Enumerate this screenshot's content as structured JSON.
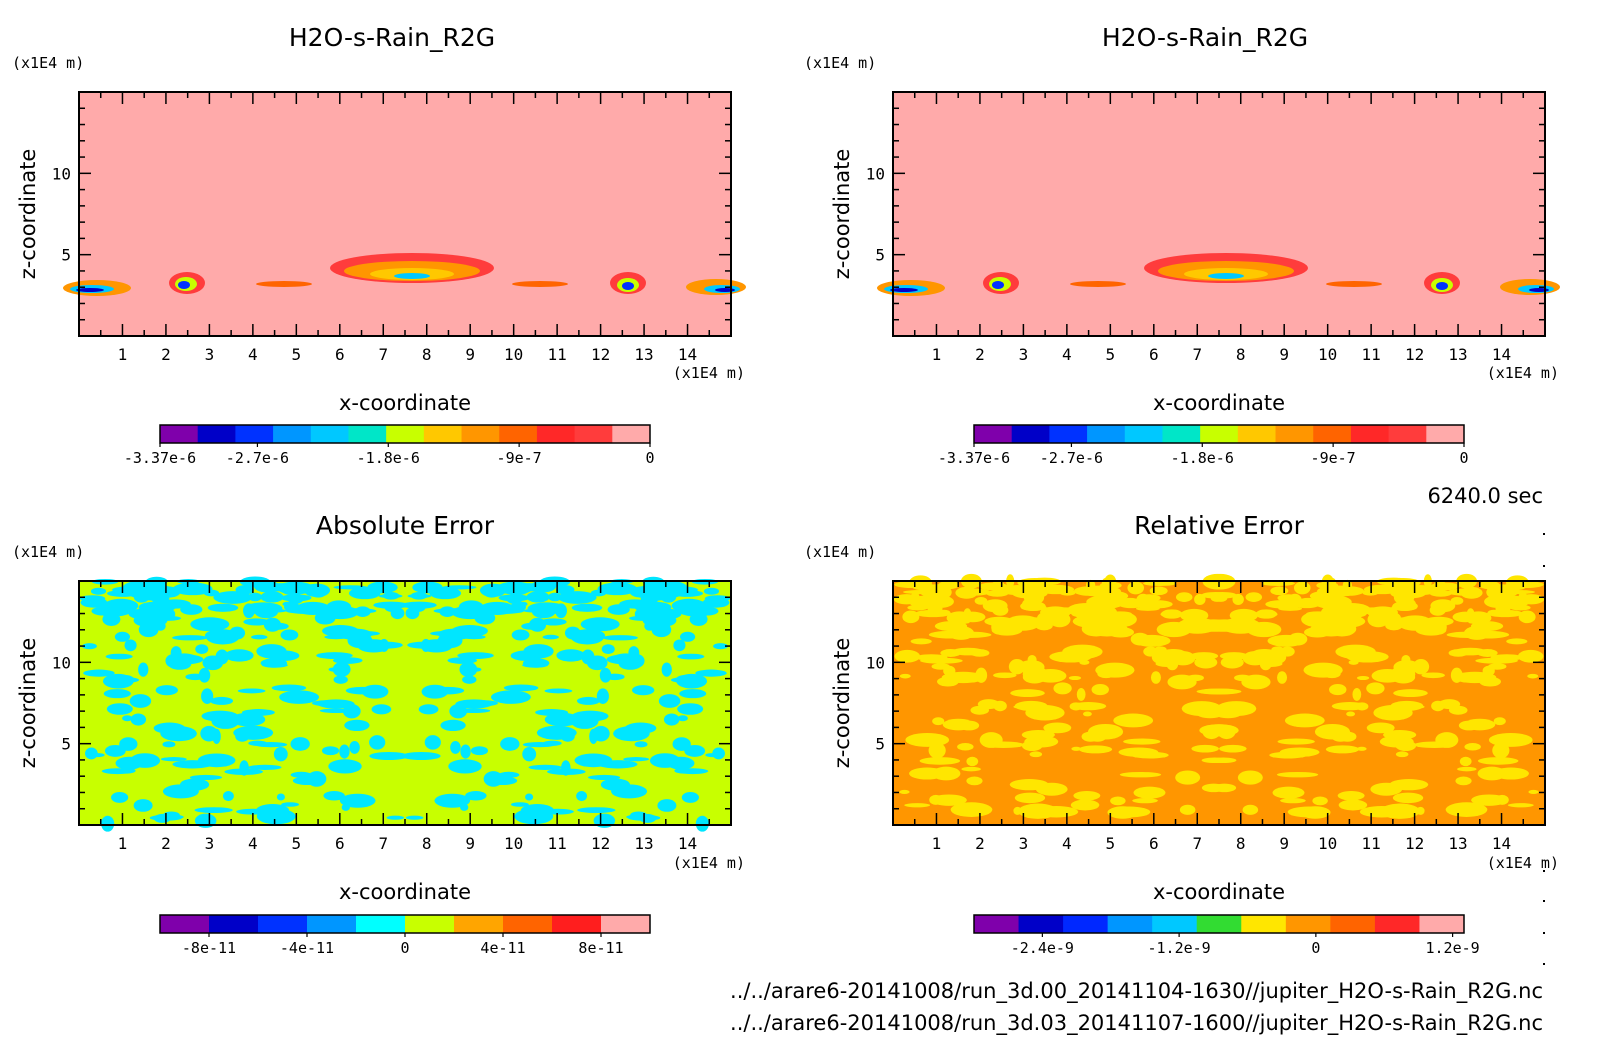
{
  "chart_data": [
    {
      "type": "heatmap",
      "title": "H2O-s-Rain_R2G",
      "xlabel": "x-coordinate",
      "ylabel": "z-coordinate",
      "x_unit": "(x1E4 m)",
      "y_unit": "(x1E4 m)",
      "xlim": [
        0,
        15
      ],
      "ylim": [
        0,
        15
      ],
      "x_ticks": [
        1,
        2,
        3,
        4,
        5,
        6,
        7,
        8,
        9,
        10,
        11,
        12,
        13,
        14
      ],
      "y_ticks": [
        5,
        10
      ],
      "background_value": 0,
      "colorbar": {
        "colors": [
          "#7f00ab",
          "#0000c8",
          "#0032ff",
          "#0096ff",
          "#00c8ff",
          "#00e6c8",
          "#c8ff00",
          "#ffc800",
          "#ff9600",
          "#ff6400",
          "#ff2828",
          "#ff3c3c",
          "#ffaaaa"
        ],
        "labels": [
          "-3.37e-6",
          "-2.7e-6",
          "-1.8e-6",
          "-9e-7",
          "0"
        ],
        "label_values": [
          -3.37e-06,
          -2.7e-06,
          -1.8e-06,
          -9e-07,
          0
        ],
        "range": [
          -3.37e-06,
          0
        ]
      },
      "features": [
        {
          "x": 0.5,
          "z": 3.0,
          "value": -3.37e-06
        },
        {
          "x": 2.5,
          "z": 3.3,
          "value": -3e-06
        },
        {
          "x": 4.7,
          "z": 3.2,
          "value": -5e-07
        },
        {
          "x": 7.6,
          "z": 4.0,
          "value": -1.8e-06
        },
        {
          "x": 10.4,
          "z": 3.2,
          "value": -5e-07
        },
        {
          "x": 12.6,
          "z": 3.3,
          "value": -3e-06
        },
        {
          "x": 14.6,
          "z": 3.0,
          "value": -3.37e-06
        }
      ]
    },
    {
      "type": "heatmap",
      "title": "H2O-s-Rain_R2G",
      "xlabel": "x-coordinate",
      "ylabel": "z-coordinate",
      "x_unit": "(x1E4 m)",
      "y_unit": "(x1E4 m)",
      "xlim": [
        0,
        15
      ],
      "ylim": [
        0,
        15
      ],
      "x_ticks": [
        1,
        2,
        3,
        4,
        5,
        6,
        7,
        8,
        9,
        10,
        11,
        12,
        13,
        14
      ],
      "y_ticks": [
        5,
        10
      ],
      "background_value": 0,
      "colorbar": {
        "colors": [
          "#7f00ab",
          "#0000c8",
          "#0032ff",
          "#0096ff",
          "#00c8ff",
          "#00e6c8",
          "#c8ff00",
          "#ffc800",
          "#ff9600",
          "#ff6400",
          "#ff2828",
          "#ff3c3c",
          "#ffaaaa"
        ],
        "labels": [
          "-3.37e-6",
          "-2.7e-6",
          "-1.8e-6",
          "-9e-7",
          "0"
        ],
        "label_values": [
          -3.37e-06,
          -2.7e-06,
          -1.8e-06,
          -9e-07,
          0
        ],
        "range": [
          -3.37e-06,
          0
        ]
      },
      "features": [
        {
          "x": 0.5,
          "z": 3.0,
          "value": -3.37e-06
        },
        {
          "x": 2.5,
          "z": 3.3,
          "value": -3e-06
        },
        {
          "x": 4.7,
          "z": 3.2,
          "value": -5e-07
        },
        {
          "x": 7.6,
          "z": 4.0,
          "value": -1.8e-06
        },
        {
          "x": 10.4,
          "z": 3.2,
          "value": -5e-07
        },
        {
          "x": 12.6,
          "z": 3.3,
          "value": -3e-06
        },
        {
          "x": 14.6,
          "z": 3.0,
          "value": -3.37e-06
        }
      ]
    },
    {
      "type": "heatmap",
      "title": "Absolute Error",
      "xlabel": "x-coordinate",
      "ylabel": "z-coordinate",
      "x_unit": "(x1E4 m)",
      "y_unit": "(x1E4 m)",
      "xlim": [
        0,
        15
      ],
      "ylim": [
        0,
        15
      ],
      "x_ticks": [
        1,
        2,
        3,
        4,
        5,
        6,
        7,
        8,
        9,
        10,
        11,
        12,
        13,
        14
      ],
      "y_ticks": [
        5,
        10
      ],
      "dominant_colors": [
        "#c8ff00",
        "#00e6ff"
      ],
      "colorbar": {
        "colors": [
          "#7f00ab",
          "#0000c8",
          "#0032ff",
          "#0096ff",
          "#00ffff",
          "#c8ff00",
          "#ffa500",
          "#ff6400",
          "#ff1e1e",
          "#ffaaaa"
        ],
        "labels": [
          "-8e-11",
          "-4e-11",
          "0",
          "4e-11",
          "8e-11"
        ],
        "label_values": [
          -8e-11,
          -4e-11,
          0,
          4e-11,
          8e-11
        ],
        "range": [
          -1e-10,
          1e-10
        ]
      }
    },
    {
      "type": "heatmap",
      "title": "Relative Error",
      "xlabel": "x-coordinate",
      "ylabel": "z-coordinate",
      "x_unit": "(x1E4 m)",
      "y_unit": "(x1E4 m)",
      "xlim": [
        0,
        15
      ],
      "ylim": [
        0,
        15
      ],
      "x_ticks": [
        1,
        2,
        3,
        4,
        5,
        6,
        7,
        8,
        9,
        10,
        11,
        12,
        13,
        14
      ],
      "y_ticks": [
        5,
        10
      ],
      "dominant_colors": [
        "#ff9600",
        "#ffe600"
      ],
      "colorbar": {
        "colors": [
          "#7f00ab",
          "#0000c8",
          "#0028ff",
          "#0096ff",
          "#00c8ff",
          "#32dc32",
          "#ffe600",
          "#ff9600",
          "#ff6400",
          "#ff2828",
          "#ffaaaa"
        ],
        "labels": [
          "-2.4e-9",
          "-1.2e-9",
          "0",
          "1.2e-9"
        ],
        "label_values": [
          -2.4e-09,
          -1.2e-09,
          0,
          1.2e-09
        ],
        "range": [
          -3e-09,
          1.3e-09
        ]
      }
    }
  ],
  "time_label": "6240.0 sec",
  "file_paths": [
    "../../arare6-20141008/run_3d.00_20141104-1630//jupiter_H2O-s-Rain_R2G.nc",
    "../../arare6-20141008/run_3d.03_20141107-1600//jupiter_H2O-s-Rain_R2G.nc"
  ]
}
